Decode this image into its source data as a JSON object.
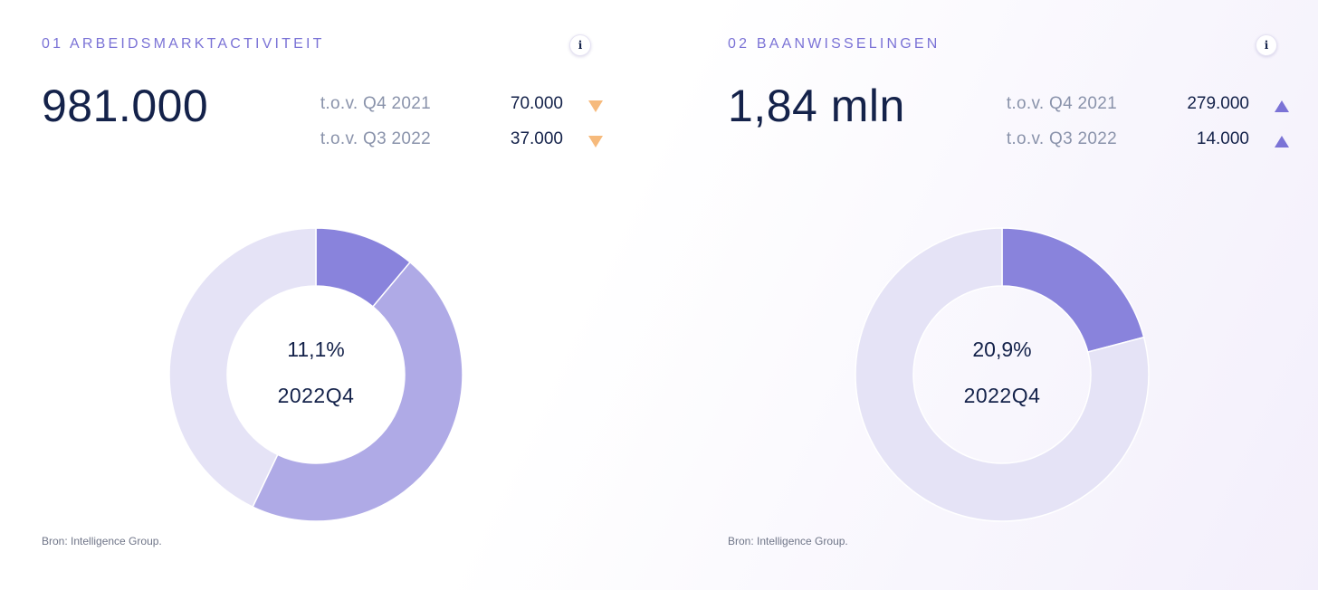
{
  "colors": {
    "accent": "#7b73d6",
    "dark_text": "#14224a",
    "muted_text": "#8a93ab",
    "decrease": "#f6ba7c",
    "increase": "#7b73d6",
    "slice_highlight": "#8983dc",
    "slice_medium": "#afaae6",
    "slice_light": "#e5e3f6"
  },
  "panels": [
    {
      "title": "01 ARBEIDSMARKTACTIVITEIT",
      "info_icon": "info-icon",
      "info_label": "i",
      "big_value": "981.000",
      "comparisons": [
        {
          "label": "t.o.v. Q4 2021",
          "value": "70.000",
          "direction": "down",
          "icon": "triangle-down-icon"
        },
        {
          "label": "t.o.v. Q3 2022",
          "value": "37.000",
          "direction": "down",
          "icon": "triangle-down-icon"
        }
      ],
      "center_label": "11,1%",
      "period_label": "2022Q4",
      "source": "Bron: Intelligence Group."
    },
    {
      "title": "02 BAANWISSELINGEN",
      "info_icon": "info-icon",
      "info_label": "i",
      "big_value": "1,84 mln",
      "comparisons": [
        {
          "label": "t.o.v. Q4 2021",
          "value": "279.000",
          "direction": "up",
          "icon": "triangle-up-icon"
        },
        {
          "label": "t.o.v. Q3 2022",
          "value": "14.000",
          "direction": "up",
          "icon": "triangle-up-icon"
        }
      ],
      "center_label": "20,9%",
      "period_label": "2022Q4",
      "source": "Bron: Intelligence Group."
    }
  ],
  "chart_data": [
    {
      "type": "pie",
      "variant": "donut",
      "values": [
        11.1,
        46.0,
        42.9
      ],
      "colors": [
        "#8983dc",
        "#afaae6",
        "#e5e3f6"
      ],
      "start_angle": "12 o'clock, clockwise",
      "center_text": [
        "11,1%",
        "2022Q4"
      ]
    },
    {
      "type": "pie",
      "variant": "donut",
      "values": [
        20.9,
        79.1
      ],
      "colors": [
        "#8983dc",
        "#e5e3f6"
      ],
      "start_angle": "12 o'clock, clockwise",
      "center_text": [
        "20,9%",
        "2022Q4"
      ]
    }
  ]
}
